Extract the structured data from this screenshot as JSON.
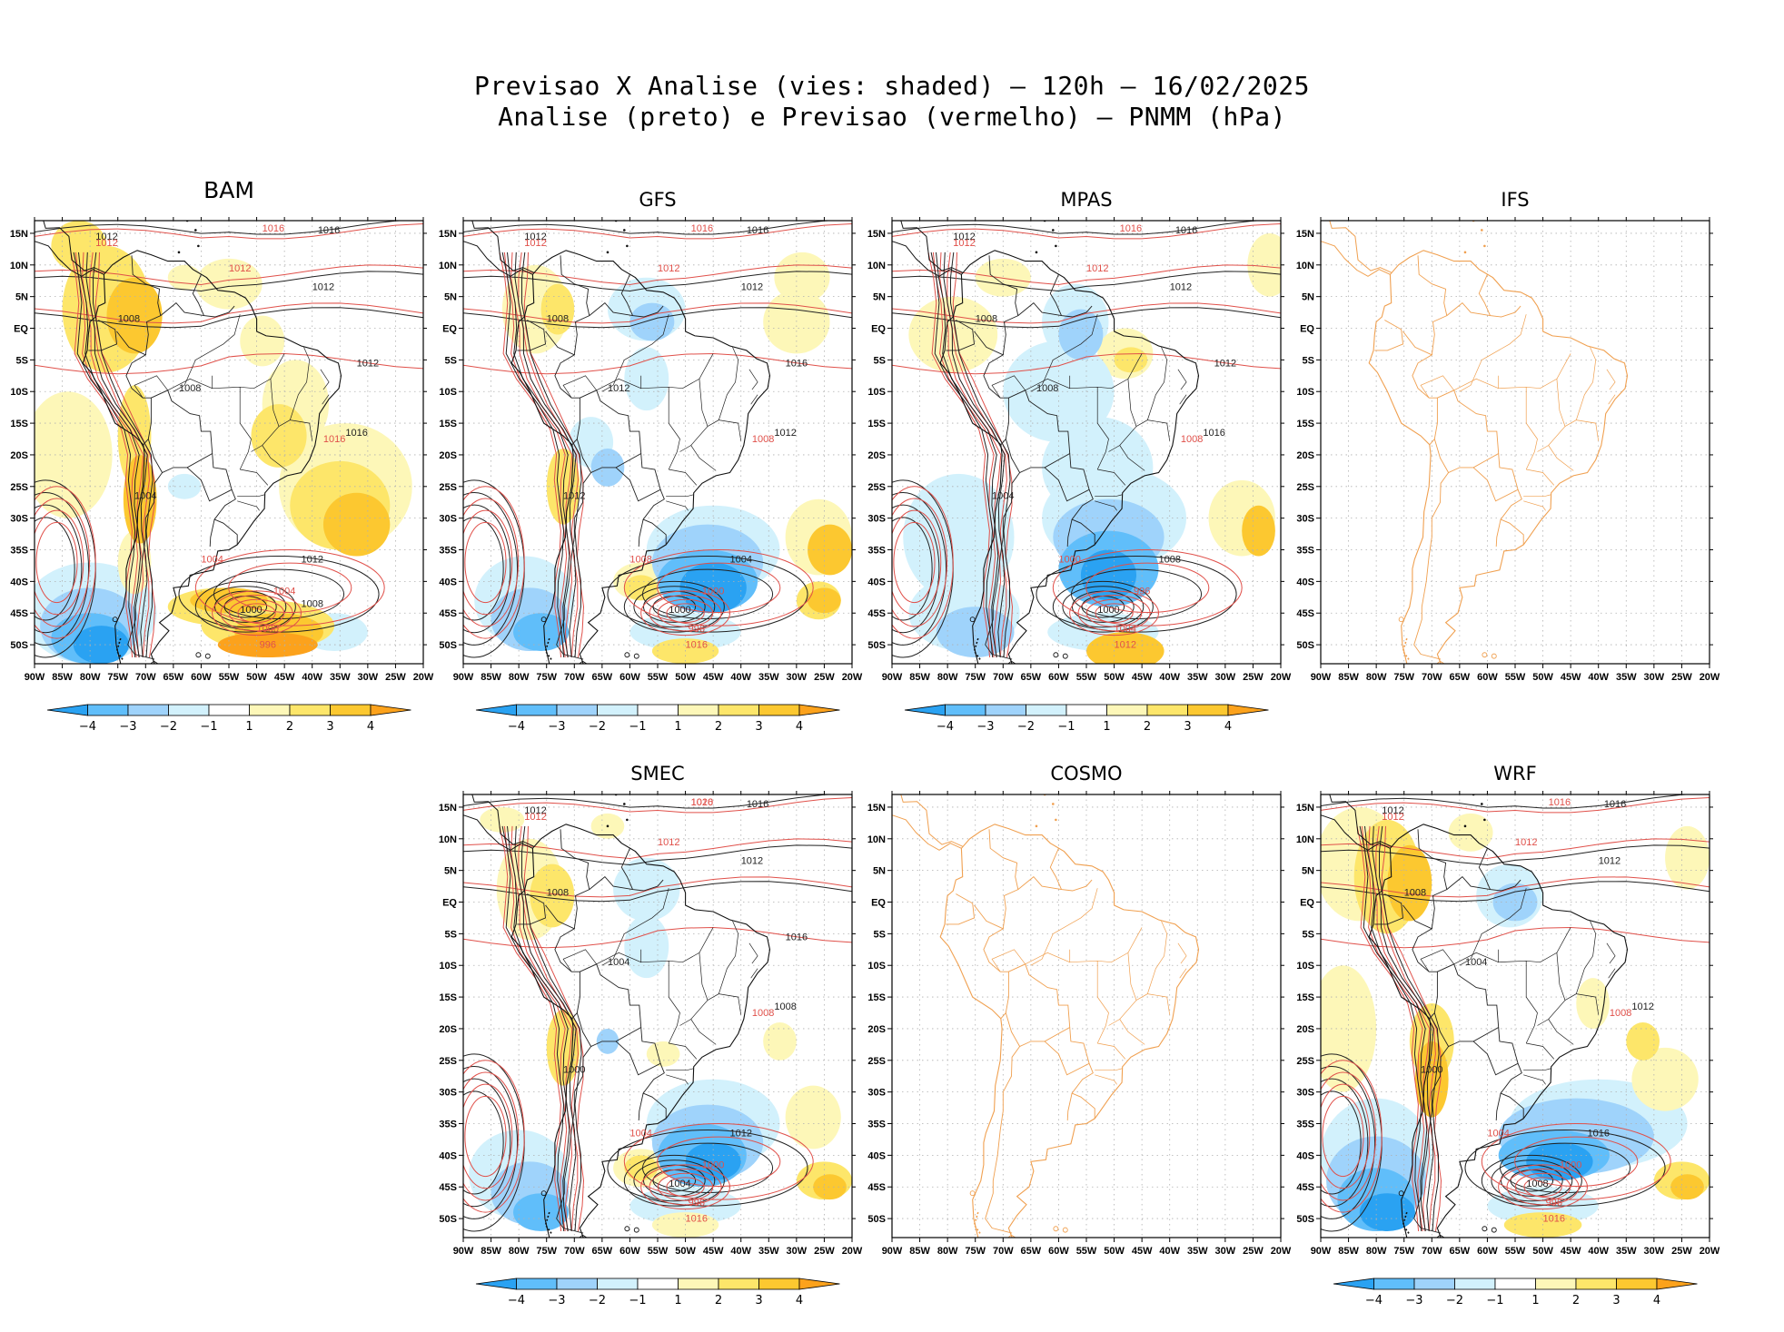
{
  "header": {
    "line1": "Previsao X Analise (vies: shaded) – 120h – 16/02/2025",
    "line2": "Analise (preto) e Previsao (vermelho) – PNMM (hPa)"
  },
  "colors": {
    "analysis_contour": "#222222",
    "forecast_contour": "#e0504a",
    "coast_empty": "#f0a050",
    "grid": "#b0b0b0",
    "bias_-4": "#2aa2f2",
    "bias_-3": "#60befa",
    "bias_-2": "#9fd3fb",
    "bias_-1": "#d2f1fc",
    "bias_1": "#fdf7b8",
    "bias_2": "#fde66a",
    "bias_3": "#fcc830",
    "bias_4": "#fca21c"
  },
  "chart_data": {
    "type": "map_panels",
    "variable": "PNMM (hPa)",
    "lon_range": [
      -90,
      -20
    ],
    "lat_range": [
      -53,
      17
    ],
    "x_ticks": [
      "90W",
      "85W",
      "80W",
      "75W",
      "70W",
      "65W",
      "60W",
      "55W",
      "50W",
      "45W",
      "40W",
      "35W",
      "30W",
      "25W",
      "20W"
    ],
    "y_ticks": [
      "15N",
      "10N",
      "5N",
      "EQ",
      "5S",
      "10S",
      "15S",
      "20S",
      "25S",
      "30S",
      "35S",
      "40S",
      "45S",
      "50S"
    ],
    "colorbar_ticks": [
      "-4",
      "-3",
      "-2",
      "-1",
      "1",
      "2",
      "3",
      "4"
    ],
    "panels": [
      {
        "id": "bam",
        "title": "BAM",
        "has_data": true,
        "labels_black": [
          "1016",
          "1012",
          "1012",
          "1008",
          "1008",
          "1004",
          "1000",
          "1012",
          "1016",
          "1012",
          "1008"
        ],
        "labels_red": [
          "1016",
          "1012",
          "1012",
          "1016",
          "1004",
          "1004",
          "1000",
          "996"
        ]
      },
      {
        "id": "gfs",
        "title": "GFS",
        "has_data": true,
        "labels_black": [
          "1016",
          "1012",
          "1012",
          "1008",
          "1012",
          "1012",
          "1000",
          "1004",
          "1012",
          "1016"
        ],
        "labels_red": [
          "1016",
          "1012",
          "1012",
          "1008",
          "1008",
          "1000",
          "996",
          "1016"
        ]
      },
      {
        "id": "mpas",
        "title": "MPAS",
        "has_data": true,
        "labels_black": [
          "1016",
          "1012",
          "1012",
          "1008",
          "1008",
          "1004",
          "1000",
          "1008",
          "1016",
          "1012"
        ],
        "labels_red": [
          "1016",
          "1012",
          "1012",
          "1008",
          "1000",
          "996",
          "1004",
          "1012"
        ]
      },
      {
        "id": "ifs",
        "title": "IFS",
        "has_data": false,
        "labels_black": [],
        "labels_red": []
      },
      {
        "id": "smec",
        "title": "SMEC",
        "has_data": true,
        "labels_black": [
          "1016",
          "1012",
          "1012",
          "1008",
          "1004",
          "1000",
          "1004",
          "1012",
          "1008",
          "1016"
        ],
        "labels_red": [
          "1016",
          "1012",
          "1012",
          "1008",
          "1004",
          "1000",
          "996",
          "1016",
          "1020"
        ]
      },
      {
        "id": "cosmo",
        "title": "COSMO",
        "has_data": false,
        "labels_black": [],
        "labels_red": []
      },
      {
        "id": "wrf",
        "title": "WRF",
        "has_data": true,
        "labels_black": [
          "1016",
          "1012",
          "1012",
          "1008",
          "1004",
          "1000",
          "1008",
          "1016",
          "1012"
        ],
        "labels_red": [
          "1016",
          "1012",
          "1012",
          "1008",
          "1004",
          "1000",
          "996",
          "1016"
        ]
      }
    ]
  }
}
